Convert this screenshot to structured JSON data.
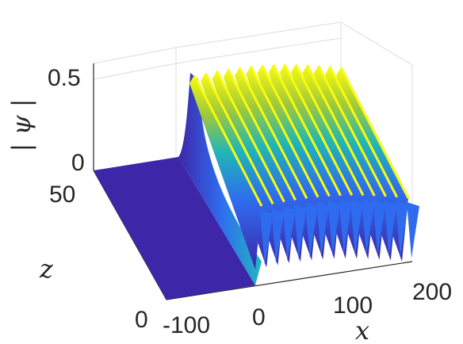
{
  "chart_data": {
    "type": "surface",
    "title": "",
    "xlabel": "x",
    "ylabel": "z",
    "zlabel": "| ψ |",
    "x_ticks": [
      "-100",
      "0",
      "100",
      "200"
    ],
    "y_ticks": [
      "0",
      "50"
    ],
    "z_ticks": [
      "0",
      "0.5"
    ],
    "xlim": [
      -150,
      200
    ],
    "ylim": [
      0,
      60
    ],
    "zlim": [
      0,
      0.55
    ],
    "grid": true,
    "colormap": "parula",
    "colors": {
      "low": "#3e26a8",
      "mid": "#1fb5b8",
      "high": "#f9fb0e"
    },
    "description_series": [
      {
        "region": "x < 0",
        "amplitude": 0.0
      },
      {
        "region": "x > 0",
        "amplitude": 0.5,
        "wave_count": 14,
        "min_amplitude": 0.1
      }
    ]
  }
}
